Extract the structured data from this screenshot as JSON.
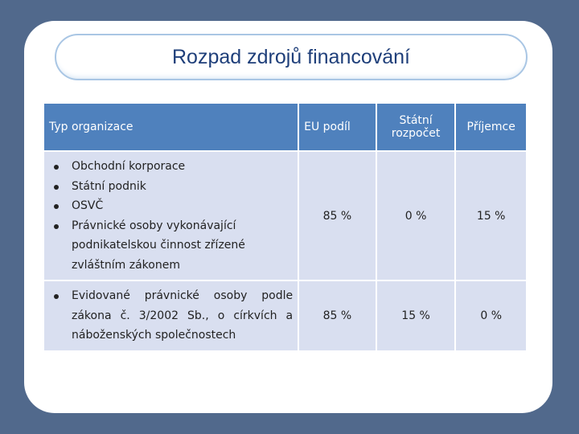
{
  "title": "Rozpad zdrojů financování",
  "table": {
    "headers": [
      "Typ organizace",
      "EU podíl",
      "Státní rozpočet",
      "Příjemce"
    ],
    "rows": [
      {
        "types": [
          "Obchodní korporace",
          "Státní podnik",
          "OSVČ",
          "Právnické osoby vykonávající podnikatelskou činnost zřízené zvláštním zákonem"
        ],
        "eu": "85 %",
        "statni": "0 %",
        "prijemce": "15 %"
      },
      {
        "types": [
          "Evidované právnické osoby podle zákona č. 3/2002 Sb., o církvích a náboženských společnostech"
        ],
        "eu": "85 %",
        "statni": "15 %",
        "prijemce": "0 %"
      }
    ]
  }
}
